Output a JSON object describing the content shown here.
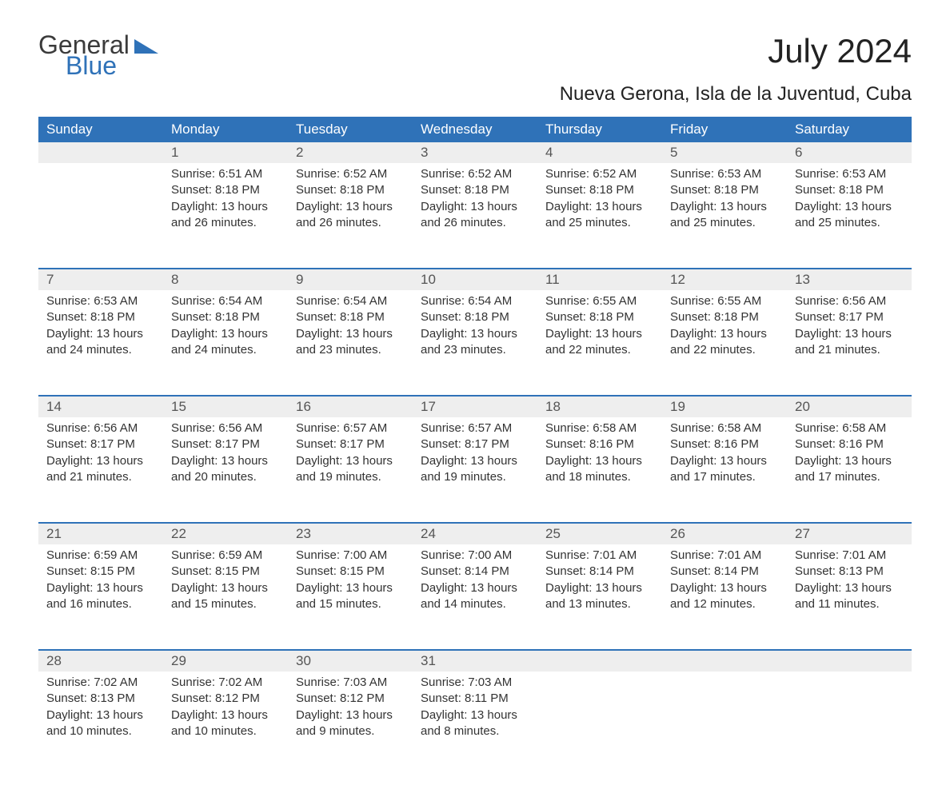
{
  "logo": {
    "word1": "General",
    "word2": "Blue"
  },
  "title": "July 2024",
  "subtitle": "Nueva Gerona, Isla de la Juventud, Cuba",
  "colors": {
    "header_bg": "#2f72b8",
    "header_text": "#ffffff",
    "daynum_bg": "#eeeeee",
    "daynum_border": "#2f72b8",
    "body_text": "#333333",
    "logo_text": "#3b3b3b",
    "logo_accent": "#2f72b8",
    "page_bg": "#ffffff"
  },
  "fonts": {
    "title_size": 42,
    "subtitle_size": 24,
    "header_size": 17,
    "body_size": 15
  },
  "weekdays": [
    "Sunday",
    "Monday",
    "Tuesday",
    "Wednesday",
    "Thursday",
    "Friday",
    "Saturday"
  ],
  "weeks": [
    [
      null,
      {
        "d": "1",
        "sr": "Sunrise: 6:51 AM",
        "ss": "Sunset: 8:18 PM",
        "dl1": "Daylight: 13 hours",
        "dl2": "and 26 minutes."
      },
      {
        "d": "2",
        "sr": "Sunrise: 6:52 AM",
        "ss": "Sunset: 8:18 PM",
        "dl1": "Daylight: 13 hours",
        "dl2": "and 26 minutes."
      },
      {
        "d": "3",
        "sr": "Sunrise: 6:52 AM",
        "ss": "Sunset: 8:18 PM",
        "dl1": "Daylight: 13 hours",
        "dl2": "and 26 minutes."
      },
      {
        "d": "4",
        "sr": "Sunrise: 6:52 AM",
        "ss": "Sunset: 8:18 PM",
        "dl1": "Daylight: 13 hours",
        "dl2": "and 25 minutes."
      },
      {
        "d": "5",
        "sr": "Sunrise: 6:53 AM",
        "ss": "Sunset: 8:18 PM",
        "dl1": "Daylight: 13 hours",
        "dl2": "and 25 minutes."
      },
      {
        "d": "6",
        "sr": "Sunrise: 6:53 AM",
        "ss": "Sunset: 8:18 PM",
        "dl1": "Daylight: 13 hours",
        "dl2": "and 25 minutes."
      }
    ],
    [
      {
        "d": "7",
        "sr": "Sunrise: 6:53 AM",
        "ss": "Sunset: 8:18 PM",
        "dl1": "Daylight: 13 hours",
        "dl2": "and 24 minutes."
      },
      {
        "d": "8",
        "sr": "Sunrise: 6:54 AM",
        "ss": "Sunset: 8:18 PM",
        "dl1": "Daylight: 13 hours",
        "dl2": "and 24 minutes."
      },
      {
        "d": "9",
        "sr": "Sunrise: 6:54 AM",
        "ss": "Sunset: 8:18 PM",
        "dl1": "Daylight: 13 hours",
        "dl2": "and 23 minutes."
      },
      {
        "d": "10",
        "sr": "Sunrise: 6:54 AM",
        "ss": "Sunset: 8:18 PM",
        "dl1": "Daylight: 13 hours",
        "dl2": "and 23 minutes."
      },
      {
        "d": "11",
        "sr": "Sunrise: 6:55 AM",
        "ss": "Sunset: 8:18 PM",
        "dl1": "Daylight: 13 hours",
        "dl2": "and 22 minutes."
      },
      {
        "d": "12",
        "sr": "Sunrise: 6:55 AM",
        "ss": "Sunset: 8:18 PM",
        "dl1": "Daylight: 13 hours",
        "dl2": "and 22 minutes."
      },
      {
        "d": "13",
        "sr": "Sunrise: 6:56 AM",
        "ss": "Sunset: 8:17 PM",
        "dl1": "Daylight: 13 hours",
        "dl2": "and 21 minutes."
      }
    ],
    [
      {
        "d": "14",
        "sr": "Sunrise: 6:56 AM",
        "ss": "Sunset: 8:17 PM",
        "dl1": "Daylight: 13 hours",
        "dl2": "and 21 minutes."
      },
      {
        "d": "15",
        "sr": "Sunrise: 6:56 AM",
        "ss": "Sunset: 8:17 PM",
        "dl1": "Daylight: 13 hours",
        "dl2": "and 20 minutes."
      },
      {
        "d": "16",
        "sr": "Sunrise: 6:57 AM",
        "ss": "Sunset: 8:17 PM",
        "dl1": "Daylight: 13 hours",
        "dl2": "and 19 minutes."
      },
      {
        "d": "17",
        "sr": "Sunrise: 6:57 AM",
        "ss": "Sunset: 8:17 PM",
        "dl1": "Daylight: 13 hours",
        "dl2": "and 19 minutes."
      },
      {
        "d": "18",
        "sr": "Sunrise: 6:58 AM",
        "ss": "Sunset: 8:16 PM",
        "dl1": "Daylight: 13 hours",
        "dl2": "and 18 minutes."
      },
      {
        "d": "19",
        "sr": "Sunrise: 6:58 AM",
        "ss": "Sunset: 8:16 PM",
        "dl1": "Daylight: 13 hours",
        "dl2": "and 17 minutes."
      },
      {
        "d": "20",
        "sr": "Sunrise: 6:58 AM",
        "ss": "Sunset: 8:16 PM",
        "dl1": "Daylight: 13 hours",
        "dl2": "and 17 minutes."
      }
    ],
    [
      {
        "d": "21",
        "sr": "Sunrise: 6:59 AM",
        "ss": "Sunset: 8:15 PM",
        "dl1": "Daylight: 13 hours",
        "dl2": "and 16 minutes."
      },
      {
        "d": "22",
        "sr": "Sunrise: 6:59 AM",
        "ss": "Sunset: 8:15 PM",
        "dl1": "Daylight: 13 hours",
        "dl2": "and 15 minutes."
      },
      {
        "d": "23",
        "sr": "Sunrise: 7:00 AM",
        "ss": "Sunset: 8:15 PM",
        "dl1": "Daylight: 13 hours",
        "dl2": "and 15 minutes."
      },
      {
        "d": "24",
        "sr": "Sunrise: 7:00 AM",
        "ss": "Sunset: 8:14 PM",
        "dl1": "Daylight: 13 hours",
        "dl2": "and 14 minutes."
      },
      {
        "d": "25",
        "sr": "Sunrise: 7:01 AM",
        "ss": "Sunset: 8:14 PM",
        "dl1": "Daylight: 13 hours",
        "dl2": "and 13 minutes."
      },
      {
        "d": "26",
        "sr": "Sunrise: 7:01 AM",
        "ss": "Sunset: 8:14 PM",
        "dl1": "Daylight: 13 hours",
        "dl2": "and 12 minutes."
      },
      {
        "d": "27",
        "sr": "Sunrise: 7:01 AM",
        "ss": "Sunset: 8:13 PM",
        "dl1": "Daylight: 13 hours",
        "dl2": "and 11 minutes."
      }
    ],
    [
      {
        "d": "28",
        "sr": "Sunrise: 7:02 AM",
        "ss": "Sunset: 8:13 PM",
        "dl1": "Daylight: 13 hours",
        "dl2": "and 10 minutes."
      },
      {
        "d": "29",
        "sr": "Sunrise: 7:02 AM",
        "ss": "Sunset: 8:12 PM",
        "dl1": "Daylight: 13 hours",
        "dl2": "and 10 minutes."
      },
      {
        "d": "30",
        "sr": "Sunrise: 7:03 AM",
        "ss": "Sunset: 8:12 PM",
        "dl1": "Daylight: 13 hours",
        "dl2": "and 9 minutes."
      },
      {
        "d": "31",
        "sr": "Sunrise: 7:03 AM",
        "ss": "Sunset: 8:11 PM",
        "dl1": "Daylight: 13 hours",
        "dl2": "and 8 minutes."
      },
      null,
      null,
      null
    ]
  ]
}
